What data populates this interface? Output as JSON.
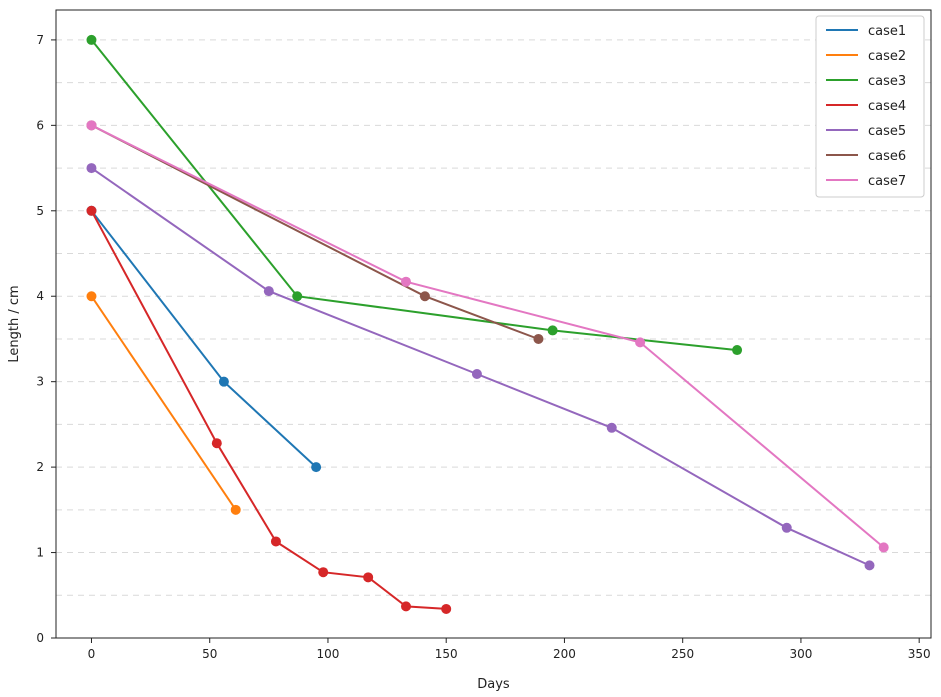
{
  "chart_data": {
    "type": "line",
    "xlabel": "Days",
    "ylabel": "Length / cm",
    "xlim": [
      -15,
      355
    ],
    "ylim": [
      0,
      7.35
    ],
    "xticks": [
      0,
      50,
      100,
      150,
      200,
      250,
      300,
      350
    ],
    "yticks": [
      0,
      1,
      2,
      3,
      4,
      5,
      6,
      7
    ],
    "grid": "horizontal dashed",
    "legend_position": "top-right",
    "series": [
      {
        "name": "case1",
        "color": "#1f77b4",
        "x": [
          0,
          56,
          95
        ],
        "y": [
          5,
          3,
          2
        ]
      },
      {
        "name": "case2",
        "color": "#ff7f0e",
        "x": [
          0,
          61
        ],
        "y": [
          4,
          1.5
        ]
      },
      {
        "name": "case3",
        "color": "#2ca02c",
        "x": [
          0,
          87,
          195,
          273
        ],
        "y": [
          7,
          4,
          3.6,
          3.37
        ]
      },
      {
        "name": "case4",
        "color": "#d62728",
        "x": [
          0,
          53,
          78,
          98,
          117,
          133,
          150
        ],
        "y": [
          5,
          2.28,
          1.13,
          0.77,
          0.71,
          0.37,
          0.34
        ]
      },
      {
        "name": "case5",
        "color": "#9467bd",
        "x": [
          0,
          75,
          163,
          220,
          294,
          329
        ],
        "y": [
          5.5,
          4.06,
          3.09,
          2.46,
          1.29,
          0.85
        ]
      },
      {
        "name": "case6",
        "color": "#8c564b",
        "x": [
          0,
          141,
          189
        ],
        "y": [
          6,
          4,
          3.5
        ]
      },
      {
        "name": "case7",
        "color": "#e377c2",
        "x": [
          0,
          133,
          232,
          335
        ],
        "y": [
          6,
          4.17,
          3.46,
          1.06
        ]
      }
    ]
  }
}
